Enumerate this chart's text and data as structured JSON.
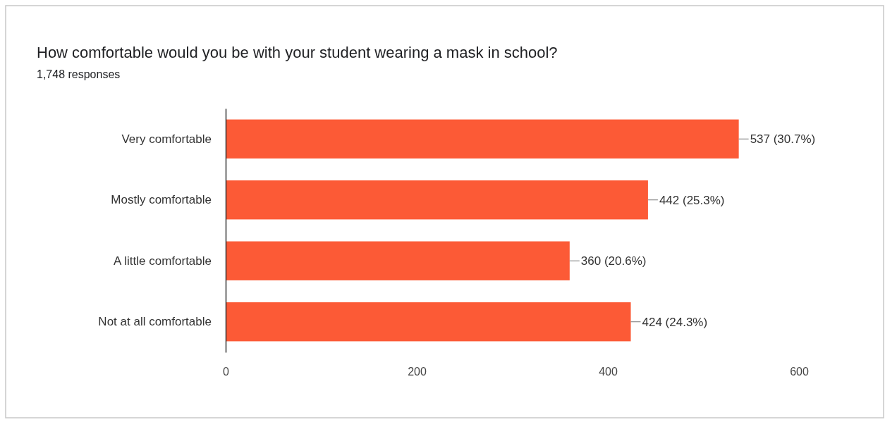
{
  "chart_data": {
    "type": "bar",
    "orientation": "horizontal",
    "title": "How comfortable would you be with your student wearing a mask in school?",
    "subtitle": "1,748 responses",
    "categories": [
      "Very comfortable",
      "Mostly comfortable",
      "A little comfortable",
      "Not at all comfortable"
    ],
    "values": [
      537,
      442,
      360,
      424
    ],
    "value_labels": [
      "537 (30.7%)",
      "442 (25.3%)",
      "360 (20.6%)",
      "424 (24.3%)"
    ],
    "color": "#fc5a36",
    "xlim": [
      0,
      600
    ],
    "xticks": [
      0,
      200,
      400,
      600
    ],
    "grid": false
  }
}
